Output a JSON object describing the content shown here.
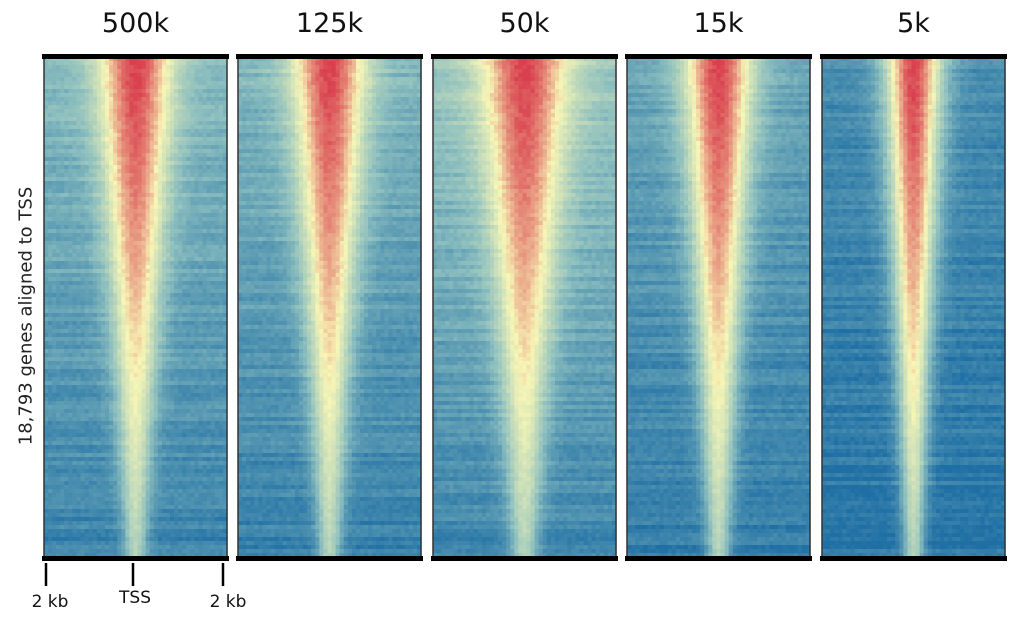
{
  "chart_data": {
    "type": "heatmap",
    "ylabel": "18,793 genes aligned to TSS",
    "x_tick_labels": [
      "2 kb",
      "TSS",
      "2 kb"
    ],
    "rows": 18793,
    "colormap": [
      "#1f6fa5",
      "#8dbfbf",
      "#f7f6b6",
      "#d93f4e"
    ],
    "panels": [
      {
        "title": "500k",
        "background_level": 0.32,
        "peak_width_top": 0.34,
        "peak_width_bottom": 0.1
      },
      {
        "title": "125k",
        "background_level": 0.3,
        "peak_width_top": 0.34,
        "peak_width_bottom": 0.1
      },
      {
        "title": "50k",
        "background_level": 0.38,
        "peak_width_top": 0.4,
        "peak_width_bottom": 0.12
      },
      {
        "title": "15k",
        "background_level": 0.22,
        "peak_width_top": 0.32,
        "peak_width_bottom": 0.1
      },
      {
        "title": "5k",
        "background_level": 0.12,
        "peak_width_top": 0.26,
        "peak_width_bottom": 0.09
      }
    ]
  }
}
